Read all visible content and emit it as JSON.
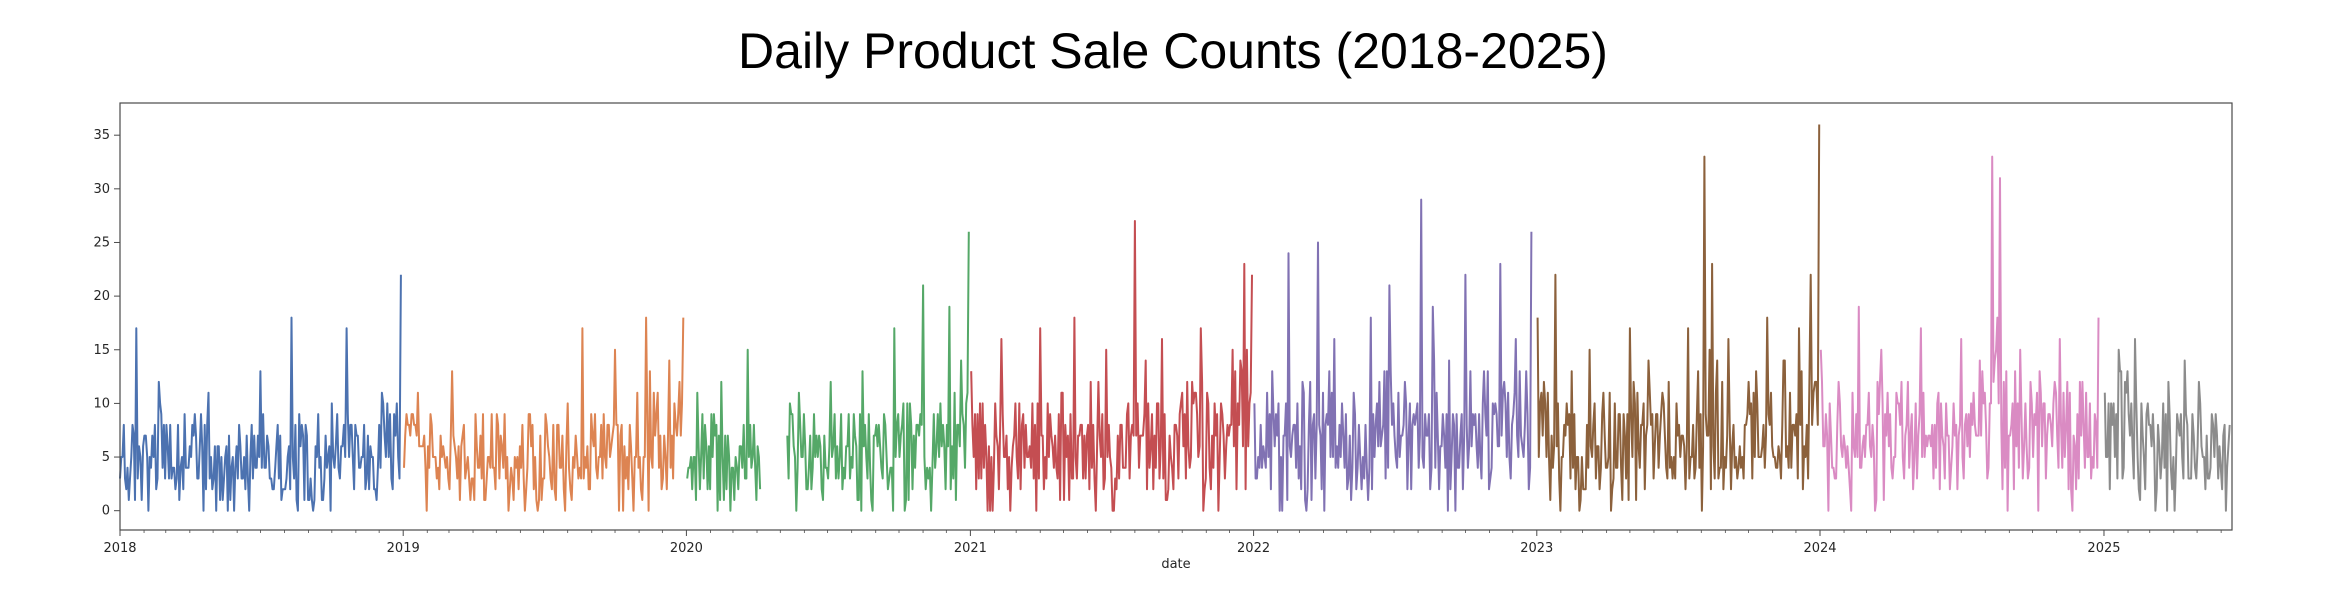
{
  "chart_data": {
    "type": "line",
    "title": "Daily Product Sale Counts (2018-2025)",
    "xlabel": "date",
    "ylabel": "",
    "ylim": [
      -1.8,
      38
    ],
    "xlim": [
      "2018-01-01",
      "2025-06-15"
    ],
    "grid": false,
    "legend": "none",
    "y_ticks": [
      0,
      5,
      10,
      15,
      20,
      25,
      30,
      35
    ],
    "x_ticks": [
      "2018",
      "2019",
      "2020",
      "2021",
      "2022",
      "2023",
      "2024",
      "2025"
    ],
    "series": [
      {
        "color": "#4c72b0",
        "x": [
          "2018-01-01",
          "2018-01-22",
          "2018-02-05",
          "2018-02-20",
          "2018-03-10",
          "2018-04-01",
          "2018-04-25",
          "2018-05-15",
          "2018-06-10",
          "2018-07-01",
          "2018-07-20",
          "2018-08-10",
          "2018-08-25",
          "2018-09-15",
          "2018-10-01",
          "2018-10-20",
          "2018-11-10",
          "2018-12-01",
          "2018-12-15",
          "2018-12-29"
        ],
        "y": [
          3,
          17,
          5,
          12,
          4,
          6,
          11,
          3,
          5,
          13,
          4,
          18,
          7,
          4,
          10,
          17,
          5,
          8,
          9,
          22
        ]
      },
      {
        "color": "#dd8452",
        "x": [
          "2019-01-02",
          "2019-01-20",
          "2019-02-10",
          "2019-03-05",
          "2019-04-01",
          "2019-04-25",
          "2019-05-20",
          "2019-06-15",
          "2019-07-10",
          "2019-08-01",
          "2019-08-20",
          "2019-09-10",
          "2019-10-01",
          "2019-10-20",
          "2019-11-10",
          "2019-11-25",
          "2019-12-10",
          "2019-12-28"
        ],
        "y": [
          4,
          11,
          5,
          13,
          3,
          9,
          4,
          6,
          3,
          10,
          17,
          5,
          15,
          8,
          18,
          11,
          14,
          18
        ]
      },
      {
        "color": "#55a868",
        "x": [
          "2020-01-02",
          "2020-01-15",
          "2020-01-30",
          "2020-02-15",
          "2020-03-01",
          "2020-03-20",
          "2020-04-05"
        ],
        "y": [
          3,
          11,
          6,
          12,
          4,
          15,
          2
        ]
      },
      {
        "color": "#55a868",
        "x": [
          "2020-05-10",
          "2020-05-25",
          "2020-06-15",
          "2020-07-05",
          "2020-07-25",
          "2020-08-15",
          "2020-09-05",
          "2020-09-25",
          "2020-10-15",
          "2020-11-01",
          "2020-11-20",
          "2020-12-05",
          "2020-12-20",
          "2020-12-30"
        ],
        "y": [
          7,
          11,
          5,
          12,
          6,
          13,
          8,
          17,
          10,
          21,
          9,
          19,
          14,
          26
        ]
      },
      {
        "color": "#c44e52",
        "x": [
          "2021-01-02",
          "2021-01-20",
          "2021-02-10",
          "2021-03-05",
          "2021-04-01",
          "2021-04-25",
          "2021-05-15",
          "2021-06-05",
          "2021-06-25",
          "2021-07-15",
          "2021-08-01",
          "2021-08-15",
          "2021-09-05",
          "2021-10-01",
          "2021-10-25",
          "2021-11-15",
          "2021-12-05",
          "2021-12-20",
          "2021-12-30"
        ],
        "y": [
          13,
          8,
          16,
          10,
          17,
          9,
          18,
          12,
          15,
          8,
          27,
          14,
          16,
          11,
          17,
          9,
          15,
          23,
          22
        ]
      },
      {
        "color": "#8172b3",
        "x": [
          "2022-01-02",
          "2022-01-25",
          "2022-02-15",
          "2022-03-05",
          "2022-03-25",
          "2022-04-15",
          "2022-05-10",
          "2022-06-01",
          "2022-06-25",
          "2022-07-15",
          "2022-08-05",
          "2022-08-20",
          "2022-09-10",
          "2022-10-01",
          "2022-10-25",
          "2022-11-15",
          "2022-12-05",
          "2022-12-25"
        ],
        "y": [
          10,
          13,
          24,
          12,
          25,
          16,
          11,
          18,
          21,
          12,
          29,
          19,
          14,
          22,
          13,
          23,
          16,
          26
        ]
      },
      {
        "color": "#8c613c",
        "x": [
          "2023-01-02",
          "2023-01-25",
          "2023-02-15",
          "2023-03-10",
          "2023-04-05",
          "2023-05-01",
          "2023-05-25",
          "2023-06-20",
          "2023-07-15",
          "2023-08-05",
          "2023-08-15",
          "2023-09-05",
          "2023-10-01",
          "2023-10-25",
          "2023-11-15",
          "2023-12-05",
          "2023-12-20",
          "2023-12-31"
        ],
        "y": [
          18,
          22,
          13,
          15,
          11,
          17,
          14,
          12,
          17,
          33,
          23,
          16,
          12,
          18,
          14,
          17,
          22,
          36
        ]
      },
      {
        "color": "#da8bc3",
        "x": [
          "2024-01-02",
          "2024-01-25",
          "2024-02-20",
          "2024-03-20",
          "2024-04-15",
          "2024-05-10",
          "2024-06-05",
          "2024-07-01",
          "2024-07-25",
          "2024-08-10",
          "2024-08-20",
          "2024-09-15",
          "2024-10-10",
          "2024-11-05",
          "2024-12-01",
          "2024-12-25"
        ],
        "y": [
          15,
          12,
          19,
          15,
          12,
          17,
          10,
          16,
          14,
          33,
          31,
          15,
          13,
          16,
          12,
          18
        ]
      },
      {
        "color": "#8c8c8c",
        "x": [
          "2025-01-02",
          "2025-01-20",
          "2025-02-10",
          "2025-03-05",
          "2025-03-25",
          "2025-04-15",
          "2025-05-05",
          "2025-05-25",
          "2025-06-12"
        ],
        "y": [
          11,
          15,
          16,
          9,
          12,
          14,
          10,
          9,
          8
        ]
      }
    ]
  }
}
